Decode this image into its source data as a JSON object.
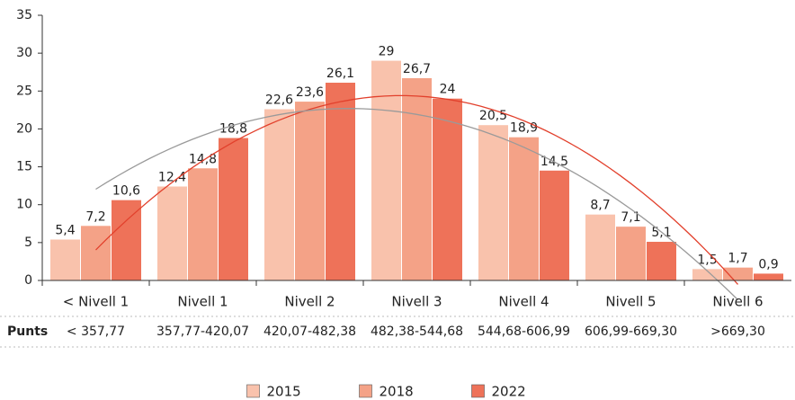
{
  "chart_data": {
    "type": "bar",
    "categories": [
      "< Nivell 1",
      "Nivell 1",
      "Nivell 2",
      "Nivell 3",
      "Nivell 4",
      "Nivell 5",
      "Nivell 6"
    ],
    "row_label": "Punts",
    "ranges": [
      "< 357,77",
      "357,77-420,07",
      "420,07-482,38",
      "482,38-544,68",
      "544,68-606,99",
      "606,99-669,30",
      ">669,30"
    ],
    "series": [
      {
        "name": "2015",
        "color": "#f9c2ac",
        "trend_color": "#e2402c",
        "values": [
          5.4,
          12.4,
          22.6,
          29,
          20.5,
          8.7,
          1.5
        ],
        "value_labels": [
          "5,4",
          "12,4",
          "22,6",
          "29",
          "20,5",
          "8,7",
          "1,5"
        ]
      },
      {
        "name": "2018",
        "color": "#f4a287",
        "values": [
          7.2,
          14.8,
          23.6,
          26.7,
          18.9,
          7.1,
          1.7
        ],
        "value_labels": [
          "7,2",
          "14,8",
          "23,6",
          "26,7",
          "18,9",
          "7,1",
          "1,7"
        ]
      },
      {
        "name": "2022",
        "color": "#ee7259",
        "trend_color": "#9a9a9a",
        "values": [
          10.6,
          18.8,
          26.1,
          24,
          14.5,
          5.1,
          0.9
        ],
        "value_labels": [
          "10,6",
          "18,8",
          "26,1",
          "24",
          "14,5",
          "5,1",
          "0,9"
        ]
      }
    ],
    "ylim": [
      0,
      35
    ],
    "yticks": [
      0,
      5,
      10,
      15,
      20,
      25,
      30,
      35
    ],
    "grid": false,
    "legend": "bottom"
  }
}
